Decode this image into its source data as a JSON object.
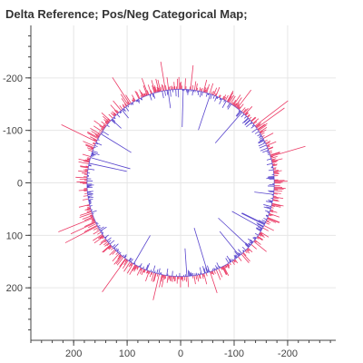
{
  "chart_data": {
    "type": "radial-delta",
    "title": "Delta Reference; Pos/Neg Categorical Map;",
    "x_axis": {
      "range": [
        280,
        -290
      ],
      "reversed": true,
      "ticks": [
        200,
        100,
        0,
        -100,
        -200
      ],
      "tick_labels": [
        "200",
        "100",
        "0",
        "-100",
        "-200"
      ]
    },
    "y_axis": {
      "range": [
        -300,
        300
      ],
      "inverted": true,
      "ticks": [
        -200,
        -100,
        0,
        100,
        200
      ],
      "tick_labels": [
        "-200",
        "-100",
        "0",
        "100",
        "200"
      ]
    },
    "grid": true,
    "reference_circle": {
      "center": [
        0,
        0
      ],
      "radius": 175
    },
    "series": [
      {
        "category": "positive",
        "color": "#e8174a",
        "direction": "outward",
        "typical_length": [
          5,
          25
        ],
        "max_length": 80
      },
      {
        "category": "negative",
        "color": "#3b24c4",
        "direction": "inward",
        "typical_length": [
          3,
          15
        ],
        "max_length": 90
      }
    ]
  }
}
